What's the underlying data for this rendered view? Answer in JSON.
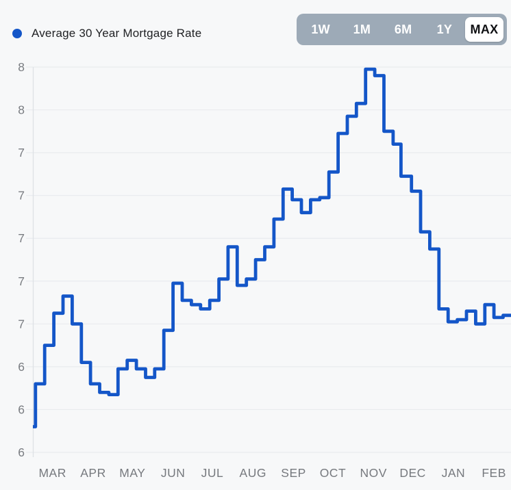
{
  "header": {
    "legend_label": "Average 30 Year Mortgage Rate"
  },
  "range_selector": {
    "options": [
      "1W",
      "1M",
      "6M",
      "1Y",
      "MAX"
    ],
    "selected": "MAX"
  },
  "colors": {
    "page_bg": "#F7F8F9",
    "line": "#1456C8",
    "legend_dot": "#1456C8",
    "grid_line": "#E9EBEE",
    "axis_line": "#DFE2E6",
    "y_tick_text": "#797C81",
    "x_tick_text": "#76797E",
    "title_text": "#1F2023",
    "selector_bg": "#9DAAB7",
    "selector_text": "#FFFFFF",
    "selected_pill_bg": "#FFFFFF",
    "selected_pill_text": "#101114"
  },
  "chart_data": {
    "type": "line",
    "line_style": "step-after",
    "title": "Average 30 Year Mortgage Rate",
    "grid": true,
    "legend_position": "top-left",
    "x_window": [
      "2023-02-14",
      "2024-02-14"
    ],
    "ylim": [
      6.0,
      7.8
    ],
    "y_ticks": [
      7.8,
      7.6,
      7.4,
      7.2,
      7.0,
      6.8,
      6.6,
      6.4,
      6.2,
      6.0
    ],
    "y_tick_labels": [
      "8",
      "8",
      "7",
      "7",
      "7",
      "7",
      "7",
      "6",
      "6",
      "6"
    ],
    "x_ticks": [
      {
        "label": "MAR",
        "date": "2023-03-01"
      },
      {
        "label": "APR",
        "date": "2023-04-01"
      },
      {
        "label": "MAY",
        "date": "2023-05-01"
      },
      {
        "label": "JUN",
        "date": "2023-06-01"
      },
      {
        "label": "JUL",
        "date": "2023-07-01"
      },
      {
        "label": "AUG",
        "date": "2023-08-01"
      },
      {
        "label": "SEP",
        "date": "2023-09-01"
      },
      {
        "label": "OCT",
        "date": "2023-10-01"
      },
      {
        "label": "NOV",
        "date": "2023-11-01"
      },
      {
        "label": "DEC",
        "date": "2023-12-01"
      },
      {
        "label": "JAN",
        "date": "2024-01-01"
      },
      {
        "label": "FEB",
        "date": "2024-02-01"
      }
    ],
    "points": [
      {
        "date": "2023-02-02",
        "value": 6.09
      },
      {
        "date": "2023-02-09",
        "value": 6.12
      },
      {
        "date": "2023-02-16",
        "value": 6.32
      },
      {
        "date": "2023-02-23",
        "value": 6.5
      },
      {
        "date": "2023-03-02",
        "value": 6.65
      },
      {
        "date": "2023-03-09",
        "value": 6.73
      },
      {
        "date": "2023-03-16",
        "value": 6.6
      },
      {
        "date": "2023-03-23",
        "value": 6.42
      },
      {
        "date": "2023-03-30",
        "value": 6.32
      },
      {
        "date": "2023-04-06",
        "value": 6.28
      },
      {
        "date": "2023-04-13",
        "value": 6.27
      },
      {
        "date": "2023-04-20",
        "value": 6.39
      },
      {
        "date": "2023-04-27",
        "value": 6.43
      },
      {
        "date": "2023-05-04",
        "value": 6.39
      },
      {
        "date": "2023-05-11",
        "value": 6.35
      },
      {
        "date": "2023-05-18",
        "value": 6.39
      },
      {
        "date": "2023-05-25",
        "value": 6.57
      },
      {
        "date": "2023-06-01",
        "value": 6.79
      },
      {
        "date": "2023-06-08",
        "value": 6.71
      },
      {
        "date": "2023-06-15",
        "value": 6.69
      },
      {
        "date": "2023-06-22",
        "value": 6.67
      },
      {
        "date": "2023-06-29",
        "value": 6.71
      },
      {
        "date": "2023-07-06",
        "value": 6.81
      },
      {
        "date": "2023-07-13",
        "value": 6.96
      },
      {
        "date": "2023-07-20",
        "value": 6.78
      },
      {
        "date": "2023-07-27",
        "value": 6.81
      },
      {
        "date": "2023-08-03",
        "value": 6.9
      },
      {
        "date": "2023-08-10",
        "value": 6.96
      },
      {
        "date": "2023-08-17",
        "value": 7.09
      },
      {
        "date": "2023-08-24",
        "value": 7.23
      },
      {
        "date": "2023-08-31",
        "value": 7.18
      },
      {
        "date": "2023-09-07",
        "value": 7.12
      },
      {
        "date": "2023-09-14",
        "value": 7.18
      },
      {
        "date": "2023-09-21",
        "value": 7.19
      },
      {
        "date": "2023-09-28",
        "value": 7.31
      },
      {
        "date": "2023-10-05",
        "value": 7.49
      },
      {
        "date": "2023-10-12",
        "value": 7.57
      },
      {
        "date": "2023-10-19",
        "value": 7.63
      },
      {
        "date": "2023-10-26",
        "value": 7.79
      },
      {
        "date": "2023-11-02",
        "value": 7.76
      },
      {
        "date": "2023-11-09",
        "value": 7.5
      },
      {
        "date": "2023-11-16",
        "value": 7.44
      },
      {
        "date": "2023-11-22",
        "value": 7.29
      },
      {
        "date": "2023-11-30",
        "value": 7.22
      },
      {
        "date": "2023-12-07",
        "value": 7.03
      },
      {
        "date": "2023-12-14",
        "value": 6.95
      },
      {
        "date": "2023-12-21",
        "value": 6.67
      },
      {
        "date": "2023-12-28",
        "value": 6.61
      },
      {
        "date": "2024-01-04",
        "value": 6.62
      },
      {
        "date": "2024-01-11",
        "value": 6.66
      },
      {
        "date": "2024-01-18",
        "value": 6.6
      },
      {
        "date": "2024-01-25",
        "value": 6.69
      },
      {
        "date": "2024-02-01",
        "value": 6.63
      },
      {
        "date": "2024-02-08",
        "value": 6.64
      }
    ]
  }
}
